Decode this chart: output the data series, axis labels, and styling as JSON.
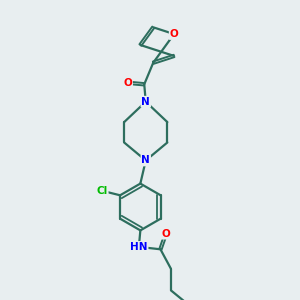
{
  "background_color": "#e8eef0",
  "bond_color": "#2d6e5e",
  "atom_colors": {
    "O": "#ff0000",
    "N": "#0000ff",
    "Cl": "#00bb00",
    "C": "#2d6e5e",
    "H": "#2d6e5e"
  },
  "figsize": [
    3.0,
    3.0
  ],
  "dpi": 100,
  "xlim": [
    0,
    10
  ],
  "ylim": [
    0,
    10
  ]
}
